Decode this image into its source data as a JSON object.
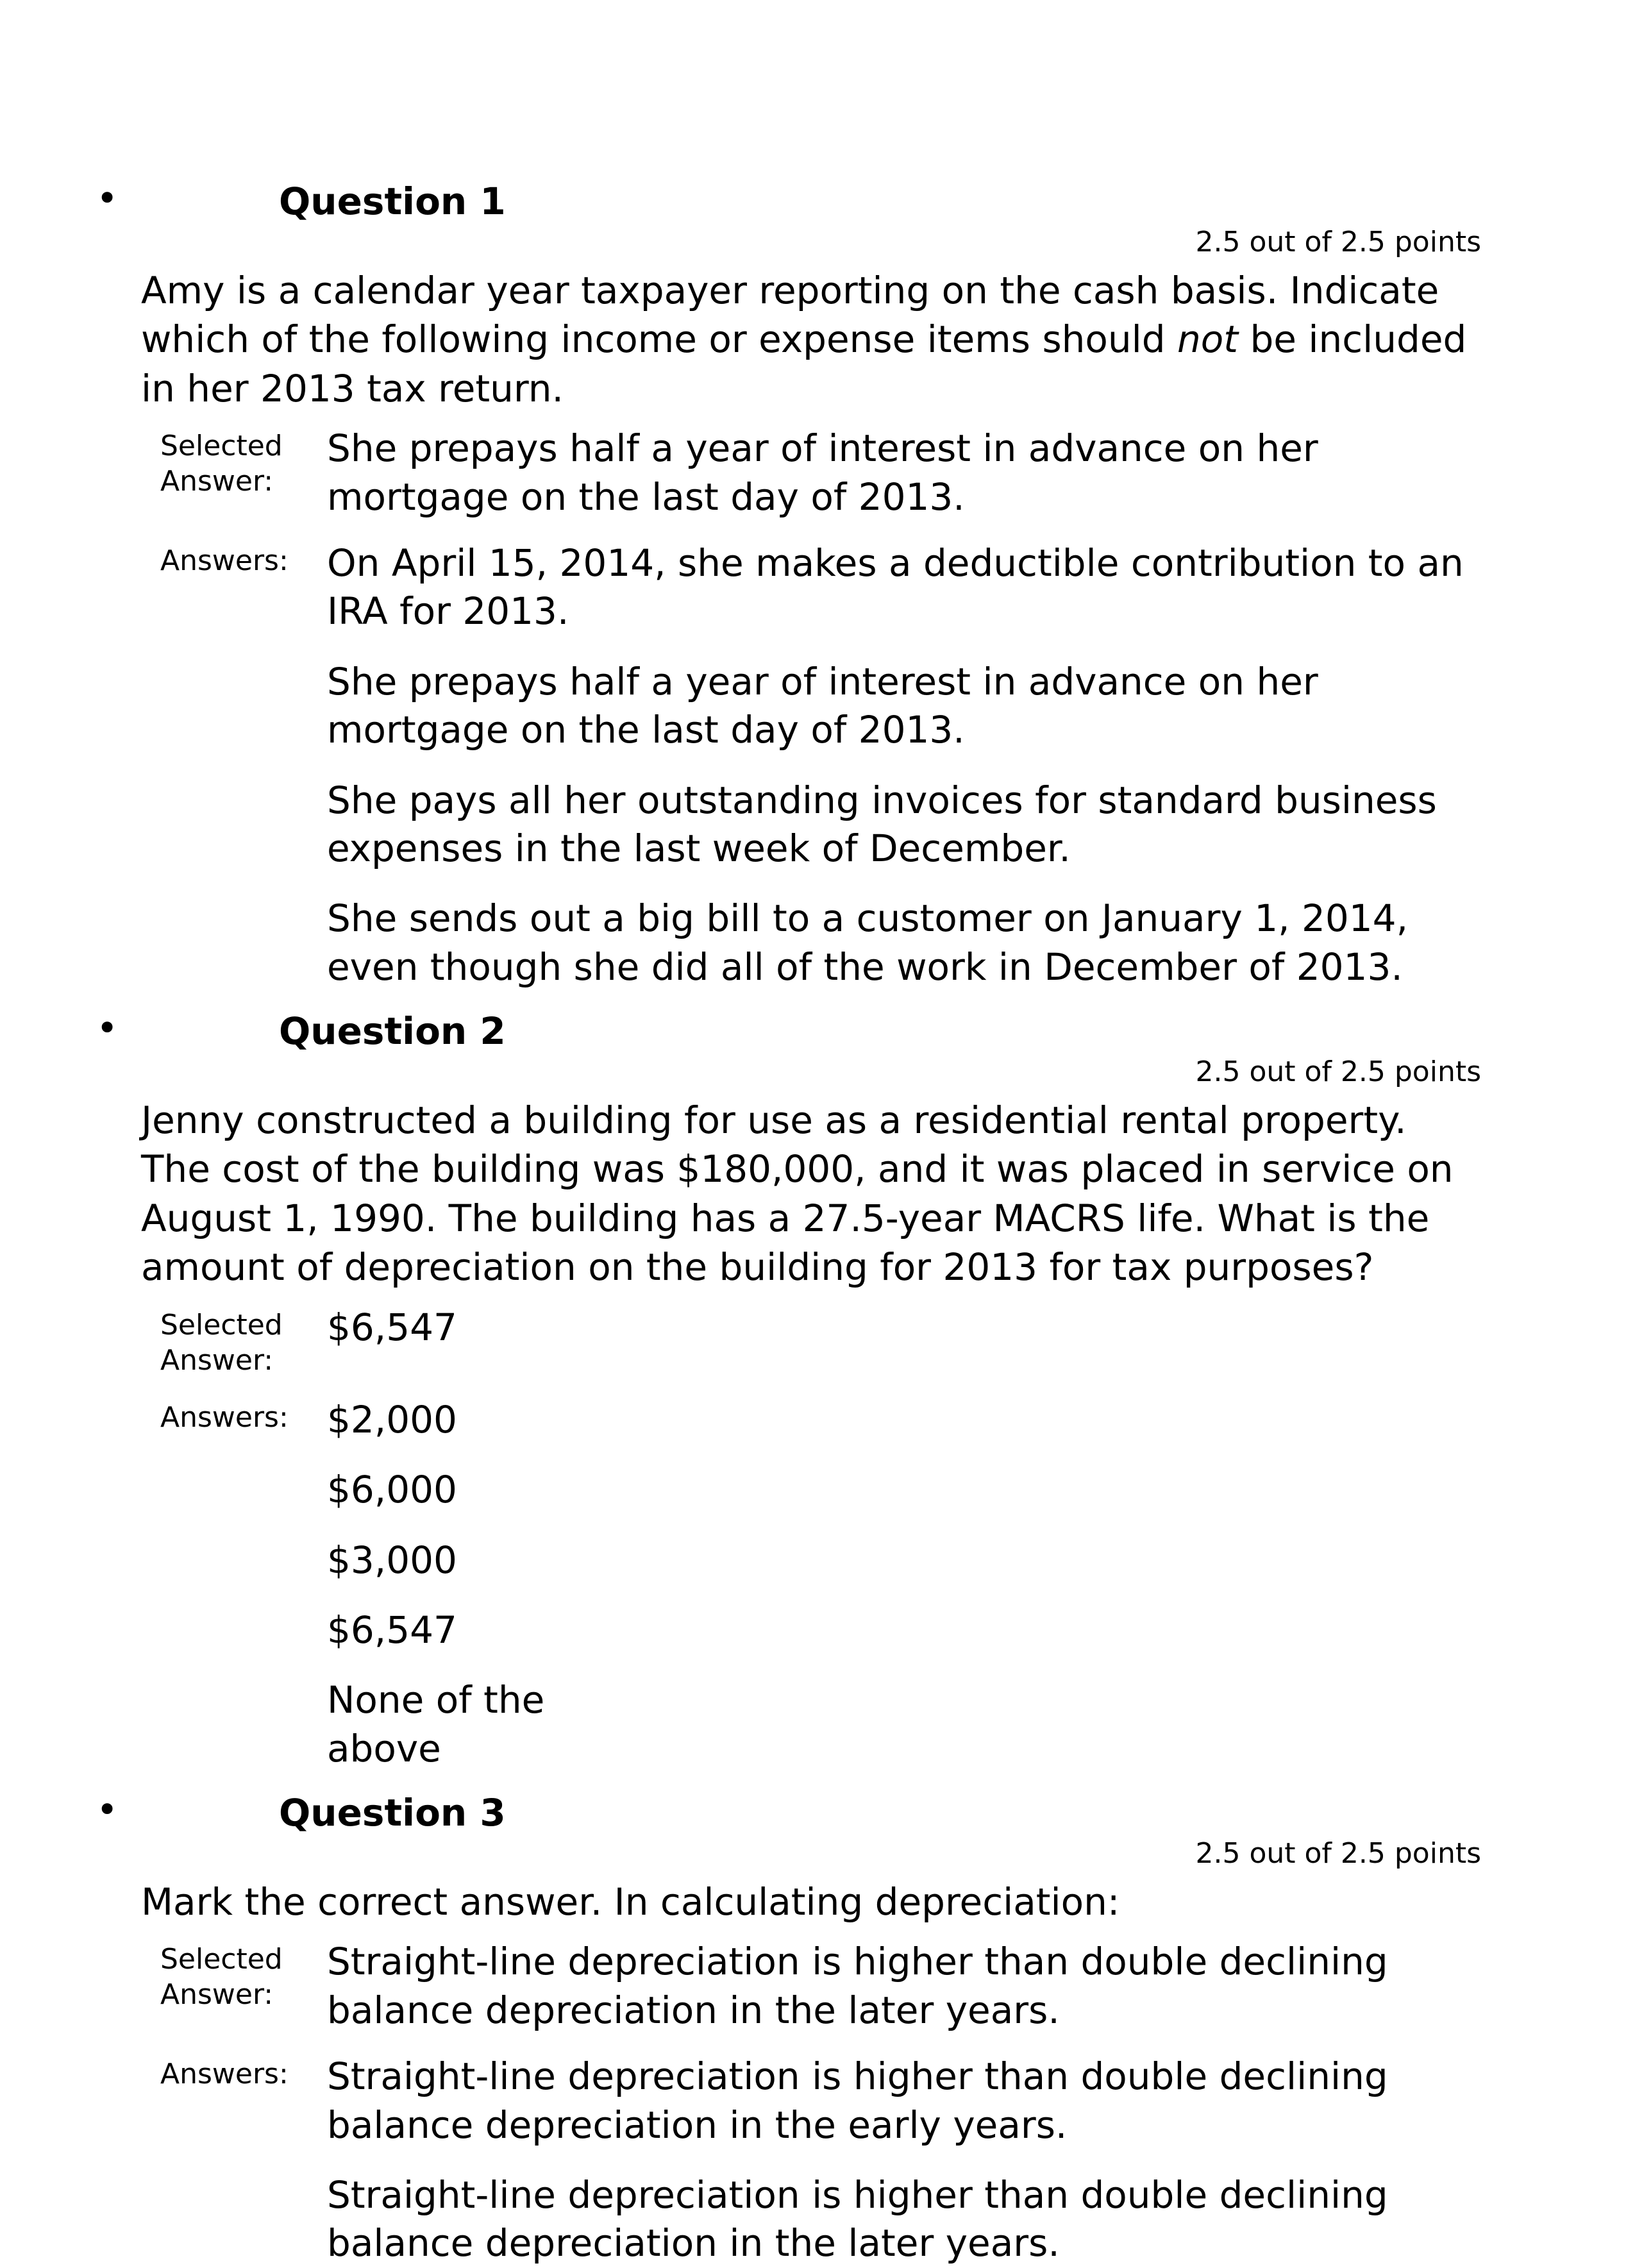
{
  "questions": [
    {
      "title": "Question 1",
      "points": "2.5 out of 2.5 points",
      "prompt_pre": "Amy is a calendar year taxpayer reporting on the cash basis. Indicate which of the following income or expense items should ",
      "prompt_italic": "not",
      "prompt_post": " be included in her 2013 tax return.",
      "selected_label": "Selected Answer:",
      "selected": "She prepays half a year of interest in advance on her mortgage on the last day of 2013.",
      "answers_label": "Answers:",
      "answers": [
        "On April 15, 2014, she makes a deductible contribution to an IRA for 2013.",
        "She prepays half a year of interest in advance on her mortgage on the last day of 2013.",
        "She pays all her outstanding invoices for standard business expenses in the last week of December.",
        "She sends out a big bill to a customer on January 1, 2014, even though she did all of the work in December of 2013."
      ]
    },
    {
      "title": "Question 2",
      "points": "2.5 out of 2.5 points",
      "prompt": "Jenny constructed a building for use as a residential rental property. The cost of the building was $180,000, and it was placed in service on August 1, 1990. The building has a 27.5-year MACRS life.  What is the amount of depreciation on the building for 2013 for tax purposes?",
      "selected_label": "Selected Answer:",
      "selected": "$6,547",
      "answers_label": "Answers:",
      "answers": [
        "$2,000",
        "$6,000",
        "$3,000",
        "$6,547",
        "None of the above"
      ]
    },
    {
      "title": "Question 3",
      "points": "2.5 out of 2.5 points",
      "prompt": "Mark the correct answer. In calculating depreciation:",
      "selected_label": "Selected Answer:",
      "selected": "Straight-line depreciation is higher than double declining balance depreciation in the later years.",
      "answers_label": "Answers:",
      "answers": [
        "Straight-line depreciation is higher than double declining balance depreciation in the early years.",
        "Straight-line depreciation is higher than double declining balance depreciation in the later years."
      ]
    }
  ]
}
